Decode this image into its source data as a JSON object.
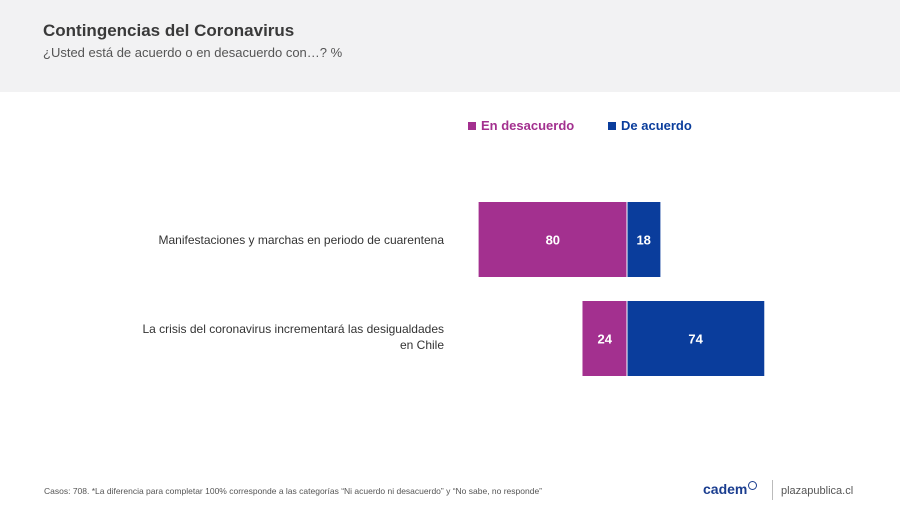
{
  "header": {
    "title": "Contingencias del Coronavirus",
    "subtitle": "¿Usted está de acuerdo o en desacuerdo con…? %"
  },
  "chart_data": {
    "type": "bar",
    "orientation": "horizontal",
    "stacked": true,
    "title": "Contingencias del Coronavirus",
    "subtitle": "¿Usted está de acuerdo o en desacuerdo con…? %",
    "categories": [
      "Manifestaciones y marchas en periodo de cuarentena",
      "La crisis del coronavirus incrementará las desigualdades en Chile"
    ],
    "category_lines": [
      [
        "Manifestaciones y marchas en periodo de cuarentena"
      ],
      [
        "La crisis del coronavirus incrementará las desigualdades",
        "en Chile"
      ]
    ],
    "series": [
      {
        "name": "En desacuerdo",
        "color": "#a3308f",
        "values": [
          80,
          24
        ],
        "direction": "left"
      },
      {
        "name": "De acuerdo",
        "color": "#0a3d9c",
        "values": [
          18,
          74
        ],
        "direction": "right"
      }
    ],
    "legend_position": "top-right",
    "grid": false
  },
  "footer": {
    "note": "Casos: 708. *La diferencia para completar 100% corresponde a las categorías “Ni acuerdo ni desacuerdo” y “No sabe, no responde”",
    "brand": "cadem",
    "site": "plazapublica.cl"
  }
}
